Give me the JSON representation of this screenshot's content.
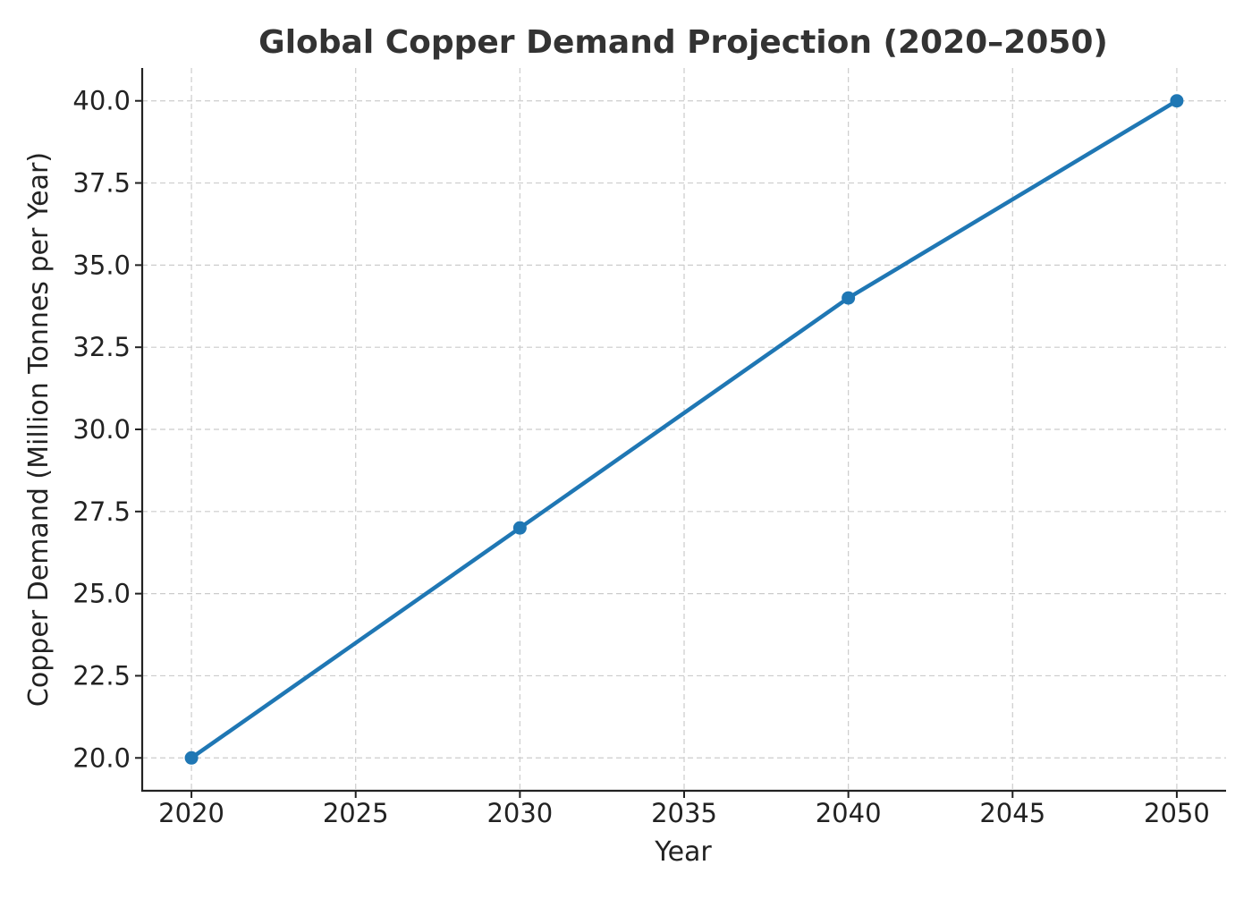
{
  "chart_data": {
    "type": "line",
    "title": "Global Copper Demand Projection (2020–2050)",
    "xlabel": "Year",
    "ylabel": "Copper Demand (Million Tonnes per Year)",
    "xlim": [
      2018.5,
      2051.5
    ],
    "ylim": [
      19.0,
      41.0
    ],
    "x_ticks": [
      2020,
      2025,
      2030,
      2035,
      2040,
      2045,
      2050
    ],
    "y_ticks": [
      20.0,
      22.5,
      25.0,
      27.5,
      30.0,
      32.5,
      35.0,
      37.5,
      40.0
    ],
    "x_tick_labels": [
      "2020",
      "2025",
      "2030",
      "2035",
      "2040",
      "2045",
      "2050"
    ],
    "y_tick_labels": [
      "20.0",
      "22.5",
      "25.0",
      "27.5",
      "30.0",
      "32.5",
      "35.0",
      "37.5",
      "40.0"
    ],
    "grid": true,
    "legend": "none",
    "series": [
      {
        "color": "#1f77b4",
        "x": [
          2020,
          2030,
          2040,
          2050
        ],
        "values": [
          20,
          27,
          34,
          40
        ]
      }
    ]
  }
}
